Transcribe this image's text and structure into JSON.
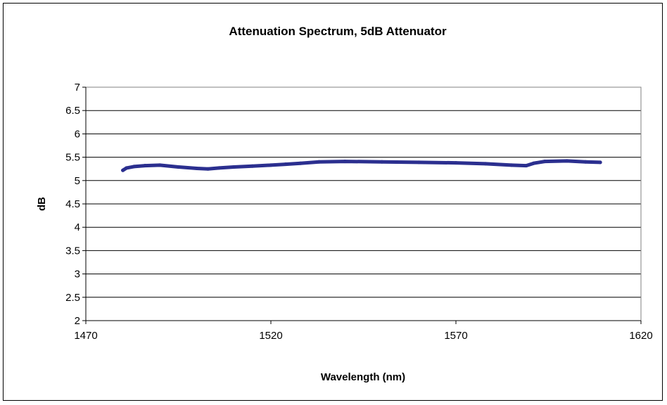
{
  "chart_data": {
    "type": "line",
    "title": "Attenuation Spectrum, 5dB Attenuator",
    "xlabel": "Wavelength (nm)",
    "ylabel": "dB",
    "xlim": [
      1470,
      1620
    ],
    "ylim": [
      2,
      7
    ],
    "x_ticks": [
      "1470",
      "1520",
      "1570",
      "1620"
    ],
    "y_ticks": [
      "2",
      "2.5",
      "3",
      "3.5",
      "4",
      "4.5",
      "5",
      "5.5",
      "6",
      "6.5",
      "7"
    ],
    "grid": "horizontal",
    "legend": "none",
    "series": [
      {
        "color": "#2b2f8f",
        "x": [
          1480,
          1481,
          1483,
          1486,
          1490,
          1495,
          1500,
          1503,
          1506,
          1510,
          1515,
          1520,
          1524,
          1528,
          1533,
          1540,
          1550,
          1560,
          1570,
          1578,
          1585,
          1589,
          1591,
          1594,
          1600,
          1605,
          1609
        ],
        "y": [
          5.22,
          5.27,
          5.3,
          5.32,
          5.33,
          5.29,
          5.26,
          5.25,
          5.27,
          5.29,
          5.31,
          5.33,
          5.35,
          5.37,
          5.4,
          5.41,
          5.4,
          5.39,
          5.38,
          5.36,
          5.33,
          5.32,
          5.37,
          5.41,
          5.42,
          5.4,
          5.39
        ]
      }
    ]
  }
}
